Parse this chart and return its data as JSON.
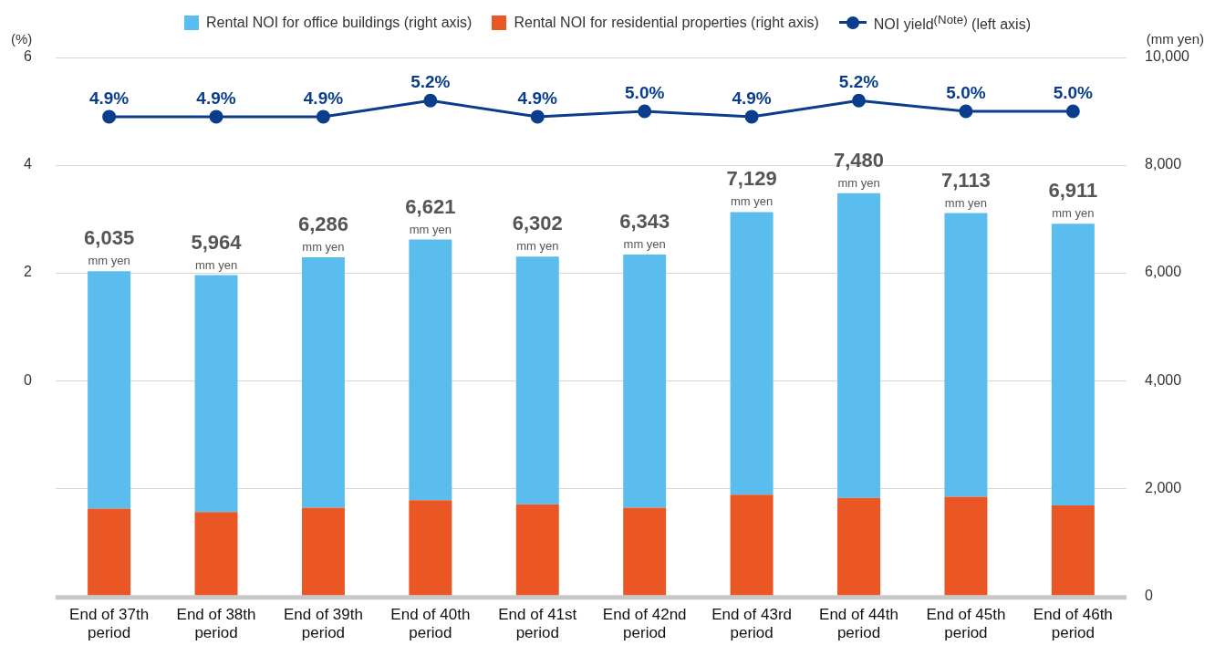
{
  "chart_data": {
    "type": "bar",
    "categories": [
      "End of 37th period",
      "End of 38th period",
      "End of 39th period",
      "End of 40th period",
      "End of 41st period",
      "End of 42nd period",
      "End of 43rd period",
      "End of 44th period",
      "End of 45th period",
      "End of 46th period"
    ],
    "stacked": true,
    "series": [
      {
        "name": "Rental NOI for residential properties (right axis)",
        "axis": "y2",
        "color": "#ea5724",
        "values": [
          1620,
          1560,
          1640,
          1780,
          1700,
          1640,
          1880,
          1820,
          1840,
          1680
        ]
      },
      {
        "name": "Rental NOI for office buildings (right axis)",
        "axis": "y2",
        "color": "#5bbcee",
        "values": [
          4410,
          4400,
          4650,
          4840,
          4600,
          4700,
          5250,
          5660,
          5270,
          5230
        ]
      },
      {
        "name": "NOI yield$^{(Note)}$ (left axis)",
        "type": "line",
        "axis": "y",
        "color": "#0a3d8c",
        "marker": "circle",
        "values": [
          4.9,
          4.9,
          4.9,
          5.2,
          4.9,
          5.0,
          4.9,
          5.2,
          5.0,
          5.0
        ],
        "value_labels": [
          "4.9%",
          "4.9%",
          "4.9%",
          "5.2%",
          "4.9%",
          "5.0%",
          "4.9%",
          "5.2%",
          "5.0%",
          "5.0%"
        ]
      }
    ],
    "totals": [
      "6,035 mm yen",
      "5,964 mm yen",
      "6,286 mm yen",
      "6,621 mm yen",
      "6,302 mm yen",
      "6,343 mm yen",
      "7,129 mm yen",
      "7,480 mm yen",
      "7,113 mm yen",
      "6,911 mm yen"
    ],
    "ylabel": "(%)",
    "y2label": "(mm yen)",
    "ylim": [
      -4,
      6
    ],
    "yticks": [
      0,
      2,
      4,
      6
    ],
    "y2lim": [
      0,
      10000
    ],
    "y2ticks": [
      0,
      {
        "value": 2000,
        "label": "2,000"
      },
      {
        "value": 4000,
        "label": "4,000"
      },
      {
        "value": 6000,
        "label": "6,000"
      },
      {
        "value": 8000,
        "label": "8,000"
      },
      {
        "value": 10000,
        "label": "10,000"
      }
    ],
    "grid": "y",
    "legend": "top"
  }
}
